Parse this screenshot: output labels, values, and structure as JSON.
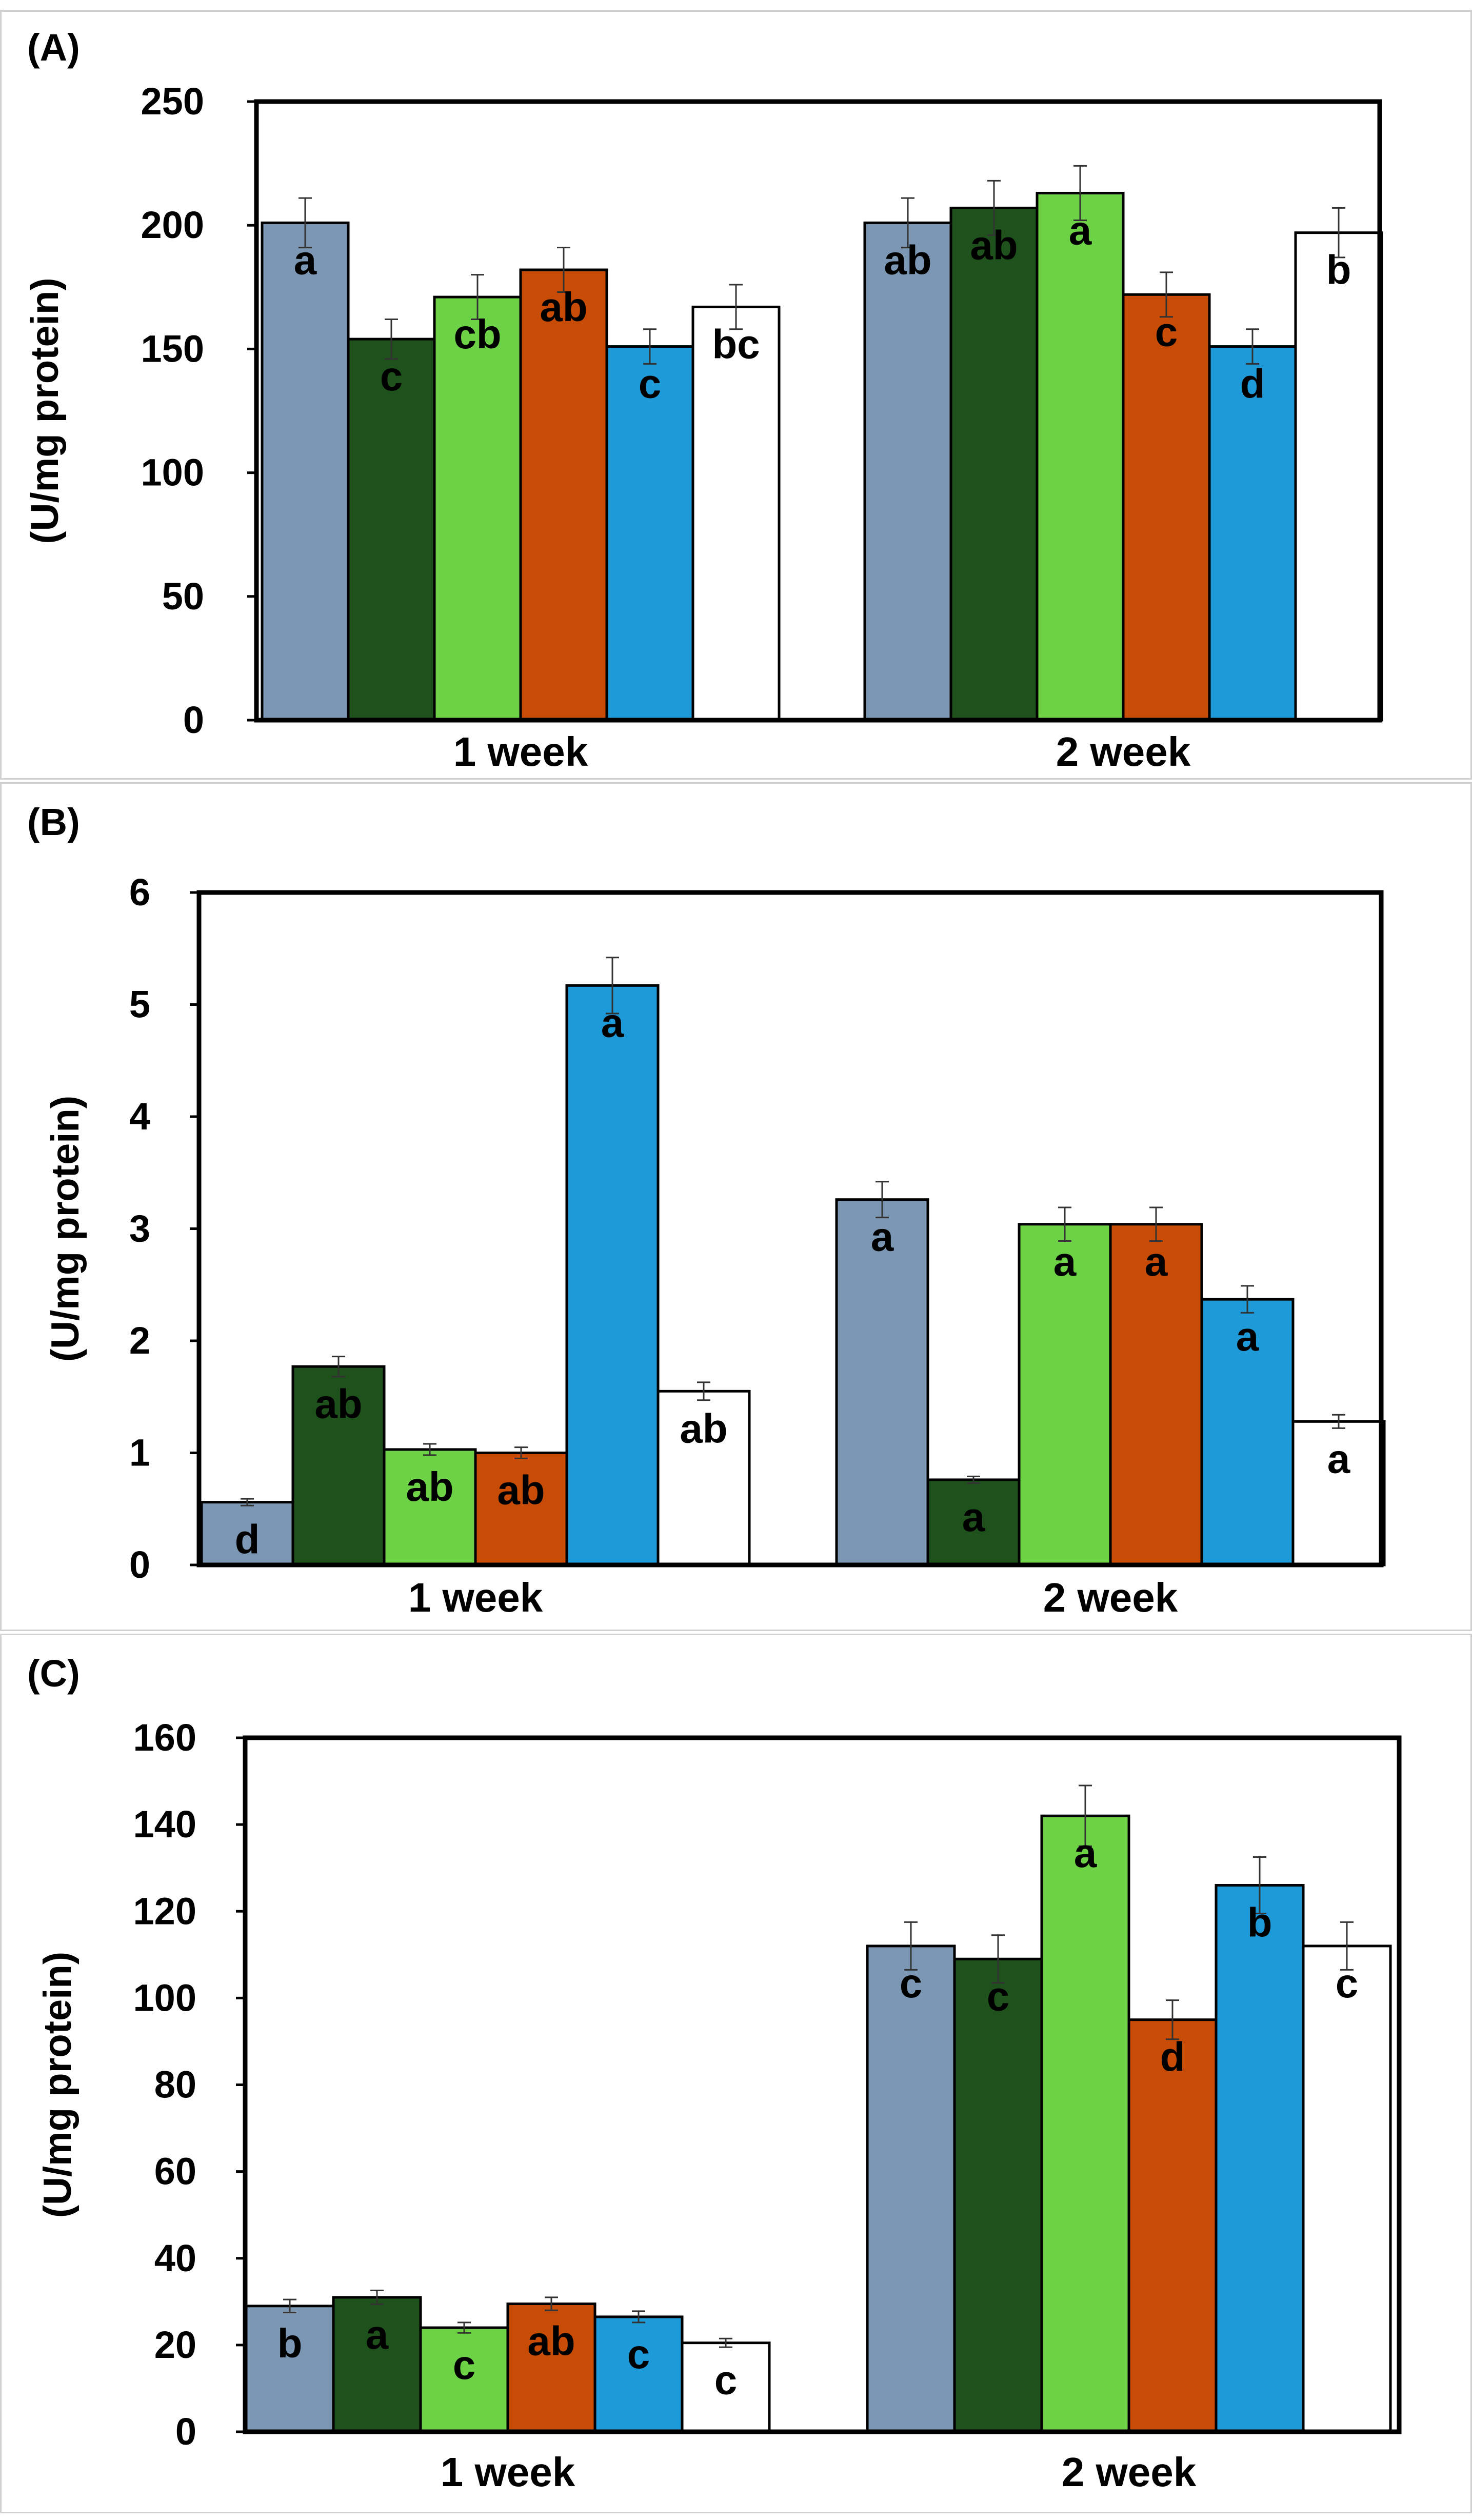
{
  "chart_data": [
    {
      "panel": "(A)",
      "type": "bar",
      "ylabel": "(U/mg protein)",
      "ylim": [
        0,
        250
      ],
      "yticks": [
        0,
        50,
        100,
        150,
        200,
        250
      ],
      "categories": [
        "1 week",
        "2 week"
      ],
      "series_colors": [
        "#7b97b4",
        "#1e511c",
        "#6ed247",
        "#c84c06",
        "#1e9ad8",
        "#ffffff"
      ],
      "groups": [
        {
          "values": [
            201,
            154,
            171,
            182,
            151,
            167
          ],
          "errors": [
            10,
            8,
            9,
            9,
            7,
            9
          ],
          "labels": [
            "a",
            "c",
            "cb",
            "ab",
            "c",
            "bc"
          ]
        },
        {
          "values": [
            201,
            207,
            213,
            172,
            151,
            197
          ],
          "errors": [
            10,
            11,
            11,
            9,
            7,
            10
          ],
          "labels": [
            "ab",
            "ab",
            "a",
            "c",
            "d",
            "b"
          ]
        }
      ]
    },
    {
      "panel": "(B)",
      "type": "bar",
      "ylabel": "(U/mg protein)",
      "ylim": [
        0,
        6
      ],
      "yticks": [
        0,
        1,
        2,
        3,
        4,
        5,
        6
      ],
      "categories": [
        "1 week",
        "2 week"
      ],
      "series_colors": [
        "#7b97b4",
        "#1e511c",
        "#6ed247",
        "#c84c06",
        "#1e9ad8",
        "#ffffff"
      ],
      "groups": [
        {
          "values": [
            0.56,
            1.77,
            1.03,
            1.0,
            5.17,
            1.55
          ],
          "errors": [
            0.03,
            0.09,
            0.05,
            0.05,
            0.25,
            0.08
          ],
          "labels": [
            "d",
            "ab",
            "ab",
            "ab",
            "a",
            "ab"
          ]
        },
        {
          "values": [
            3.26,
            0.76,
            3.04,
            3.04,
            2.37,
            1.28
          ],
          "errors": [
            0.16,
            0.03,
            0.15,
            0.15,
            0.12,
            0.06
          ],
          "labels": [
            "a",
            "a",
            "a",
            "a",
            "a",
            "a"
          ]
        }
      ]
    },
    {
      "panel": "(C)",
      "type": "bar",
      "ylabel": "(U/mg protein)",
      "ylim": [
        0,
        160
      ],
      "yticks": [
        0,
        20,
        40,
        60,
        80,
        100,
        120,
        140,
        160
      ],
      "categories": [
        "1 week",
        "2 week"
      ],
      "series_colors": [
        "#7b97b4",
        "#1e511c",
        "#6ed247",
        "#c84c06",
        "#1e9ad8",
        "#ffffff"
      ],
      "groups": [
        {
          "values": [
            29,
            31,
            24,
            29.5,
            26.5,
            20.5
          ],
          "errors": [
            1.5,
            1.6,
            1.2,
            1.5,
            1.3,
            1.0
          ],
          "labels": [
            "b",
            "a",
            "c",
            "ab",
            "c",
            "c"
          ]
        },
        {
          "values": [
            112,
            109,
            142,
            95,
            126,
            112
          ],
          "errors": [
            5.5,
            5.5,
            7,
            4.5,
            6.5,
            5.5
          ],
          "labels": [
            "c",
            "c",
            "a",
            "d",
            "b",
            "c"
          ]
        }
      ]
    }
  ]
}
